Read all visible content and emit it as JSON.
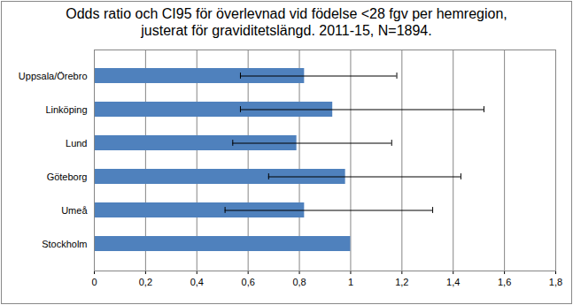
{
  "chart_data": {
    "type": "bar",
    "orientation": "horizontal",
    "title": "Odds ratio och CI95 för överlevnad  vid födelse <28 fgv per hemregion,\njusterat för graviditetslängd. 2011-15, N=1894.",
    "categories": [
      "Uppsala/Örebro",
      "Linköping",
      "Lund",
      "Göteborg",
      "Umeå",
      "Stockholm"
    ],
    "values": [
      0.82,
      0.93,
      0.79,
      0.98,
      0.82,
      1.0
    ],
    "error_low": [
      0.57,
      0.57,
      0.54,
      0.68,
      0.51,
      null
    ],
    "error_high": [
      1.18,
      1.52,
      1.16,
      1.43,
      1.32,
      null
    ],
    "color": "#4f81bd",
    "xlim": [
      0,
      1.8
    ],
    "xticks": [
      0,
      {
        "value": 0.2,
        "label": "0,2"
      },
      {
        "value": 0.4,
        "label": "0,4"
      },
      {
        "value": 0.6,
        "label": "0,6"
      },
      {
        "value": 0.8,
        "label": "0,8"
      },
      1,
      {
        "value": 1.2,
        "label": "1,2"
      },
      {
        "value": 1.4,
        "label": "1,4"
      },
      {
        "value": 1.6,
        "label": "1,6"
      },
      {
        "value": 1.8,
        "label": "1,8"
      }
    ],
    "grid": true
  }
}
